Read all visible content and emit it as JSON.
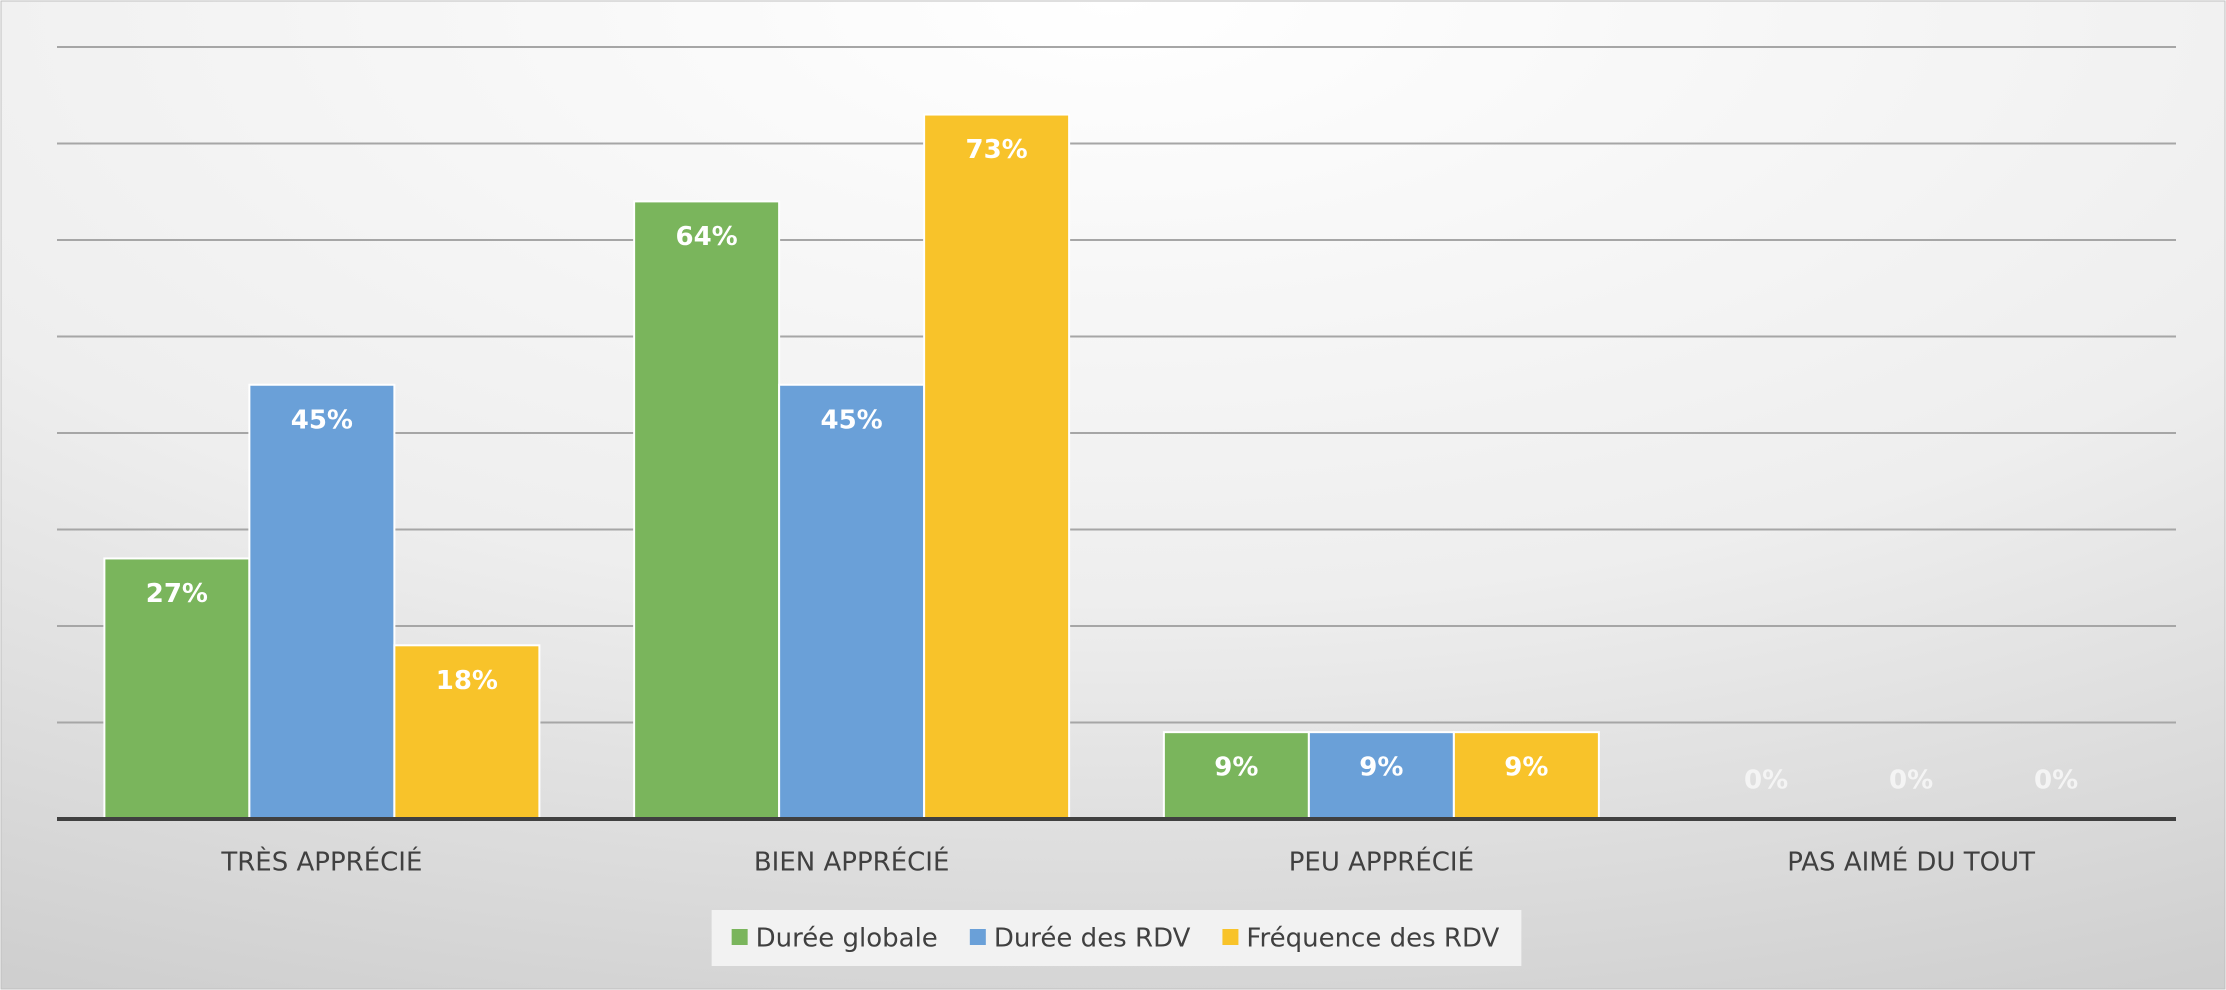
{
  "chart_data": {
    "type": "bar",
    "categories": [
      "TRÈS APPRÉCIÉ",
      "BIEN APPRÉCIÉ",
      "PEU APPRÉCIÉ",
      "PAS AIMÉ DU TOUT"
    ],
    "series": [
      {
        "name": "Durée globale",
        "color": "#7ab55c",
        "values": [
          27,
          64,
          9,
          0
        ],
        "value_labels": [
          "27%",
          "64%",
          "9%",
          "0%"
        ]
      },
      {
        "name": "Durée des RDV",
        "color": "#6aa0d8",
        "values": [
          45,
          45,
          9,
          0
        ],
        "value_labels": [
          "45%",
          "45%",
          "9%",
          "0%"
        ]
      },
      {
        "name": "Fréquence des RDV",
        "color": "#f8c32a",
        "values": [
          18,
          73,
          9,
          0
        ],
        "value_labels": [
          "18%",
          "73%",
          "9%",
          "0%"
        ]
      }
    ],
    "ylim": [
      0,
      80
    ],
    "yticks": [
      0,
      10,
      20,
      30,
      40,
      50,
      60,
      70,
      80
    ],
    "grid": true,
    "legend": "bottom"
  }
}
